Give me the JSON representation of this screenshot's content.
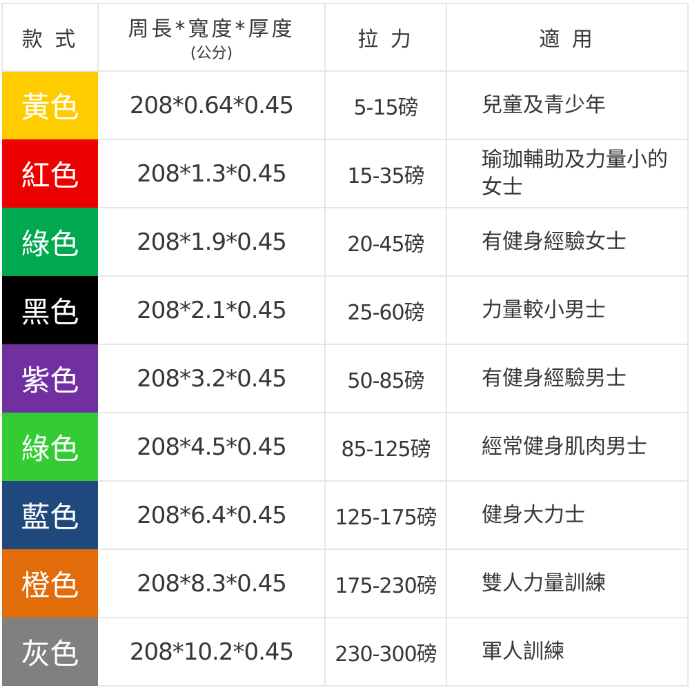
{
  "header": {
    "style": "款 式",
    "size": "周長*寬度*厚度",
    "size_unit": "(公分)",
    "force": "拉 力",
    "use": "適 用"
  },
  "rows": [
    {
      "color_name": "黃色",
      "color": "#FFCC00",
      "size": "208*0.64*0.45",
      "force": "5-15磅",
      "use": "兒童及青少年"
    },
    {
      "color_name": "紅色",
      "color": "#EE0000",
      "size": "208*1.3*0.45",
      "force": "15-35磅",
      "use": "瑜珈輔助及力量小的女士"
    },
    {
      "color_name": "綠色",
      "color": "#00A84F",
      "size": "208*1.9*0.45",
      "force": "20-45磅",
      "use": "有健身經驗女士"
    },
    {
      "color_name": "黑色",
      "color": "#000000",
      "size": "208*2.1*0.45",
      "force": "25-60磅",
      "use": "力量較小男士"
    },
    {
      "color_name": "紫色",
      "color": "#7030A0",
      "size": "208*3.2*0.45",
      "force": "50-85磅",
      "use": "有健身經驗男士"
    },
    {
      "color_name": "綠色",
      "color": "#33CC33",
      "size": "208*4.5*0.45",
      "force": "85-125磅",
      "use": "經常健身肌肉男士"
    },
    {
      "color_name": "藍色",
      "color": "#1F487C",
      "size": "208*6.4*0.45",
      "force": "125-175磅",
      "use": "健身大力士"
    },
    {
      "color_name": "橙色",
      "color": "#E36C0A",
      "size": "208*8.3*0.45",
      "force": "175-230磅",
      "use": "雙人力量訓練"
    },
    {
      "color_name": "灰色",
      "color": "#808080",
      "size": "208*10.2*0.45",
      "force": "230-300磅",
      "use": "軍人訓練"
    }
  ]
}
